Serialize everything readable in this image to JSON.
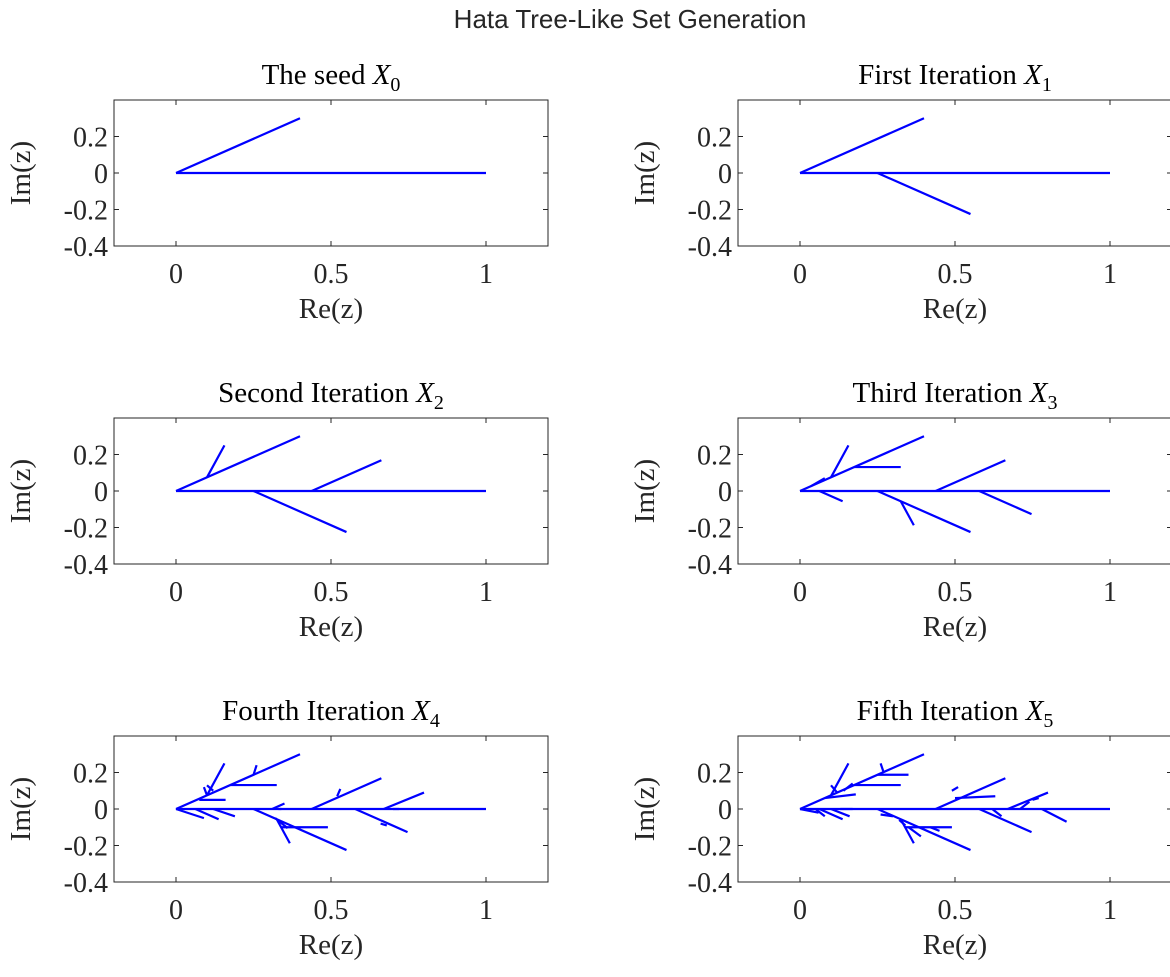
{
  "figure_title": "Hata Tree-Like Set Generation",
  "line_color": "#0000ff",
  "chart_data": [
    {
      "type": "line",
      "title": "The seed ",
      "title_var": "X",
      "title_sub": "0",
      "xlabel": "Re(z)",
      "ylabel": "Im(z)",
      "xlim": [
        -0.2,
        1.2
      ],
      "ylim": [
        -0.4,
        0.4
      ],
      "xticks": [
        0,
        0.5,
        1
      ],
      "xtick_labels": [
        "0",
        "0.5",
        "1"
      ],
      "yticks": [
        -0.4,
        -0.2,
        0,
        0.2
      ],
      "ytick_labels": [
        "-0.4",
        "-0.2",
        "0",
        "0.2"
      ],
      "segments": [
        [
          [
            0,
            0
          ],
          [
            1,
            0
          ]
        ],
        [
          [
            0,
            0
          ],
          [
            0.4,
            0.3
          ]
        ]
      ]
    },
    {
      "type": "line",
      "title": "First Iteration ",
      "title_var": "X",
      "title_sub": "1",
      "xlabel": "Re(z)",
      "ylabel": "Im(z)",
      "xlim": [
        -0.2,
        1.2
      ],
      "ylim": [
        -0.4,
        0.4
      ],
      "xticks": [
        0,
        0.5,
        1
      ],
      "xtick_labels": [
        "0",
        "0.5",
        "1"
      ],
      "yticks": [
        -0.4,
        -0.2,
        0,
        0.2
      ],
      "ytick_labels": [
        "-0.4",
        "-0.2",
        "0",
        "0.2"
      ],
      "segments": [
        [
          [
            0,
            0
          ],
          [
            1,
            0
          ]
        ],
        [
          [
            0,
            0
          ],
          [
            0.4,
            0.3
          ]
        ],
        [
          [
            0.25,
            0
          ],
          [
            0.55,
            -0.225
          ]
        ]
      ]
    },
    {
      "type": "line",
      "title": "Second Iteration ",
      "title_var": "X",
      "title_sub": "2",
      "xlabel": "Re(z)",
      "ylabel": "Im(z)",
      "xlim": [
        -0.2,
        1.2
      ],
      "ylim": [
        -0.4,
        0.4
      ],
      "xticks": [
        0,
        0.5,
        1
      ],
      "xtick_labels": [
        "0",
        "0.5",
        "1"
      ],
      "yticks": [
        -0.4,
        -0.2,
        0,
        0.2
      ],
      "ytick_labels": [
        "-0.4",
        "-0.2",
        "0",
        "0.2"
      ],
      "segments": [
        [
          [
            0,
            0
          ],
          [
            1,
            0
          ]
        ],
        [
          [
            0,
            0
          ],
          [
            0.4,
            0.3
          ]
        ],
        [
          [
            0.25,
            0
          ],
          [
            0.55,
            -0.225
          ]
        ],
        [
          [
            0.1,
            0.075
          ],
          [
            0.1563,
            0.25
          ]
        ],
        [
          [
            0.4375,
            0
          ],
          [
            0.6625,
            0.1688
          ]
        ]
      ]
    },
    {
      "type": "line",
      "title": "Third Iteration ",
      "title_var": "X",
      "title_sub": "3",
      "xlabel": "Re(z)",
      "ylabel": "Im(z)",
      "xlim": [
        -0.2,
        1.2
      ],
      "ylim": [
        -0.4,
        0.4
      ],
      "xticks": [
        0,
        0.5,
        1
      ],
      "xtick_labels": [
        "0",
        "0.5",
        "1"
      ],
      "yticks": [
        -0.4,
        -0.2,
        0,
        0.2
      ],
      "ytick_labels": [
        "-0.4",
        "-0.2",
        "0",
        "0.2"
      ],
      "segments": [
        [
          [
            0,
            0
          ],
          [
            1,
            0
          ]
        ],
        [
          [
            0,
            0
          ],
          [
            0.4,
            0.3
          ]
        ],
        [
          [
            0.25,
            0
          ],
          [
            0.55,
            -0.225
          ]
        ],
        [
          [
            0.1,
            0.075
          ],
          [
            0.1563,
            0.25
          ]
        ],
        [
          [
            0.4375,
            0
          ],
          [
            0.6625,
            0.1688
          ]
        ],
        [
          [
            0.175,
            0.1313
          ],
          [
            0.325,
            0.1313
          ]
        ],
        [
          [
            0.0625,
            0
          ],
          [
            0.1375,
            -0.0563
          ]
        ],
        [
          [
            0.325,
            -0.0563
          ],
          [
            0.3672,
            -0.1875
          ]
        ],
        [
          [
            0.5781,
            0
          ],
          [
            0.7469,
            -0.1266
          ]
        ],
        [
          [
            0.0352,
            0.0264
          ],
          [
            0.08,
            0.07
          ]
        ]
      ]
    },
    {
      "type": "line",
      "title": "Fourth Iteration ",
      "title_var": "X",
      "title_sub": "4",
      "xlabel": "Re(z)",
      "ylabel": "Im(z)",
      "xlim": [
        -0.2,
        1.2
      ],
      "ylim": [
        -0.4,
        0.4
      ],
      "xticks": [
        0,
        0.5,
        1
      ],
      "xtick_labels": [
        "0",
        "0.5",
        "1"
      ],
      "yticks": [
        -0.4,
        -0.2,
        0,
        0.2
      ],
      "ytick_labels": [
        "-0.4",
        "-0.2",
        "0",
        "0.2"
      ],
      "segments": [
        [
          [
            0,
            0
          ],
          [
            1,
            0
          ]
        ],
        [
          [
            0,
            0
          ],
          [
            0.4,
            0.3
          ]
        ],
        [
          [
            0.25,
            0
          ],
          [
            0.55,
            -0.225
          ]
        ],
        [
          [
            0.1,
            0.075
          ],
          [
            0.1563,
            0.25
          ]
        ],
        [
          [
            0.4375,
            0
          ],
          [
            0.6625,
            0.1688
          ]
        ],
        [
          [
            0.175,
            0.1313
          ],
          [
            0.325,
            0.1313
          ]
        ],
        [
          [
            0.0625,
            0
          ],
          [
            0.1375,
            -0.0563
          ]
        ],
        [
          [
            0.325,
            -0.0563
          ],
          [
            0.3672,
            -0.1875
          ]
        ],
        [
          [
            0.5781,
            0
          ],
          [
            0.7469,
            -0.1266
          ]
        ],
        [
          [
            0.1,
            0.075
          ],
          [
            0.09,
            0.12
          ]
        ],
        [
          [
            0.12,
            0.1
          ],
          [
            0.1,
            0.13
          ]
        ],
        [
          [
            0.25,
            0.1875
          ],
          [
            0.26,
            0.24
          ]
        ],
        [
          [
            0.075,
            0.05
          ],
          [
            0.16,
            0.05
          ]
        ],
        [
          [
            0.0,
            0.0
          ],
          [
            0.09,
            -0.05
          ]
        ],
        [
          [
            0.12,
            0.0
          ],
          [
            0.19,
            -0.04
          ]
        ],
        [
          [
            0.34,
            -0.1
          ],
          [
            0.49,
            -0.1
          ]
        ],
        [
          [
            0.32,
            -0.05
          ],
          [
            0.36,
            -0.105
          ]
        ],
        [
          [
            0.33,
            0.0
          ],
          [
            0.34,
            0.0
          ]
        ],
        [
          [
            0.31,
            0.0
          ],
          [
            0.35,
            0.03
          ]
        ],
        [
          [
            0.52,
            0.07
          ],
          [
            0.53,
            0.11
          ]
        ],
        [
          [
            0.67,
            0.0
          ],
          [
            0.8,
            0.09
          ]
        ],
        [
          [
            0.7,
            0.0
          ],
          [
            0.72,
            0.0
          ]
        ],
        [
          [
            0.66,
            -0.08
          ],
          [
            0.68,
            -0.09
          ]
        ]
      ]
    },
    {
      "type": "line",
      "title": "Fifth Iteration ",
      "title_var": "X",
      "title_sub": "5",
      "xlabel": "Re(z)",
      "ylabel": "Im(z)",
      "xlim": [
        -0.2,
        1.2
      ],
      "ylim": [
        -0.4,
        0.4
      ],
      "xticks": [
        0,
        0.5,
        1
      ],
      "xtick_labels": [
        "0",
        "0.5",
        "1"
      ],
      "yticks": [
        -0.4,
        -0.2,
        0,
        0.2
      ],
      "ytick_labels": [
        "-0.4",
        "-0.2",
        "0",
        "0.2"
      ],
      "segments": [
        [
          [
            0,
            0
          ],
          [
            1,
            0
          ]
        ],
        [
          [
            0,
            0
          ],
          [
            0.4,
            0.3
          ]
        ],
        [
          [
            0.25,
            0
          ],
          [
            0.55,
            -0.225
          ]
        ],
        [
          [
            0.1,
            0.075
          ],
          [
            0.1563,
            0.25
          ]
        ],
        [
          [
            0.4375,
            0
          ],
          [
            0.6625,
            0.1688
          ]
        ],
        [
          [
            0.175,
            0.1313
          ],
          [
            0.325,
            0.1313
          ]
        ],
        [
          [
            0.0625,
            0
          ],
          [
            0.1375,
            -0.0563
          ]
        ],
        [
          [
            0.325,
            -0.0563
          ],
          [
            0.3672,
            -0.1875
          ]
        ],
        [
          [
            0.5781,
            0
          ],
          [
            0.7469,
            -0.1266
          ]
        ],
        [
          [
            0.67,
            0.0
          ],
          [
            0.8,
            0.09
          ]
        ],
        [
          [
            0.34,
            -0.1
          ],
          [
            0.49,
            -0.1
          ]
        ],
        [
          [
            0.25,
            0.1875
          ],
          [
            0.35,
            0.1875
          ]
        ],
        [
          [
            0.27,
            0.2
          ],
          [
            0.26,
            0.25
          ]
        ],
        [
          [
            0.12,
            0.09
          ],
          [
            0.1,
            0.13
          ]
        ],
        [
          [
            0.14,
            0.1
          ],
          [
            0.17,
            0.14
          ]
        ],
        [
          [
            0.08,
            0.06
          ],
          [
            0.18,
            0.08
          ]
        ],
        [
          [
            0.0,
            0.0
          ],
          [
            0.06,
            -0.02
          ]
        ],
        [
          [
            0.05,
            0.0
          ],
          [
            0.08,
            -0.04
          ]
        ],
        [
          [
            0.1,
            0.0
          ],
          [
            0.16,
            -0.04
          ]
        ],
        [
          [
            0.13,
            0.0
          ],
          [
            0.17,
            0.0
          ]
        ],
        [
          [
            0.26,
            -0.03
          ],
          [
            0.3,
            -0.04
          ]
        ],
        [
          [
            0.32,
            -0.06
          ],
          [
            0.34,
            -0.09
          ]
        ],
        [
          [
            0.35,
            -0.1
          ],
          [
            0.39,
            -0.15
          ]
        ],
        [
          [
            0.42,
            -0.1
          ],
          [
            0.45,
            -0.12
          ]
        ],
        [
          [
            0.49,
            0.1
          ],
          [
            0.51,
            0.12
          ]
        ],
        [
          [
            0.5,
            0.06
          ],
          [
            0.63,
            0.07
          ]
        ],
        [
          [
            0.62,
            0.0
          ],
          [
            0.65,
            -0.04
          ]
        ],
        [
          [
            0.71,
            0.0
          ],
          [
            0.74,
            0.04
          ]
        ],
        [
          [
            0.78,
            0.0
          ],
          [
            0.86,
            -0.07
          ]
        ],
        [
          [
            0.75,
            0.05
          ],
          [
            0.77,
            0.06
          ]
        ]
      ]
    }
  ]
}
